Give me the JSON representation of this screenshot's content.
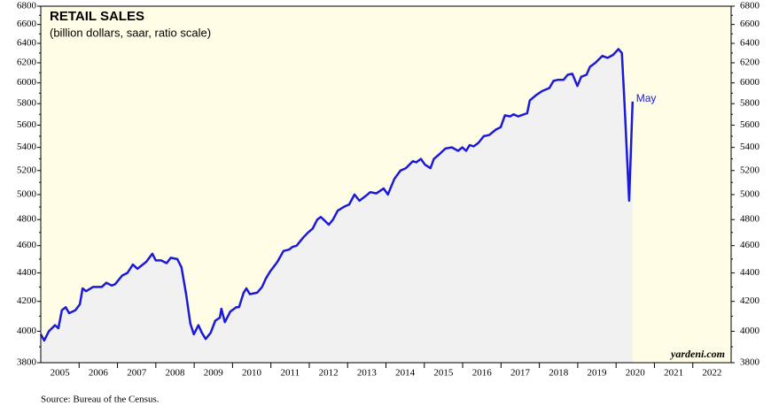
{
  "chart_data": {
    "type": "line",
    "title": "RETAIL SALES",
    "subtitle": "(billion dollars, saar, ratio scale)",
    "annotation": "May",
    "watermark": "yardeni.com",
    "source": "Source: Bureau of the Census.",
    "log_scale": true,
    "color": "#1a1ad8",
    "x": [
      2005.0,
      2005.09,
      2005.21,
      2005.37,
      2005.46,
      2005.55,
      2005.65,
      2005.74,
      2005.9,
      2006.02,
      2006.09,
      2006.18,
      2006.36,
      2006.59,
      2006.71,
      2006.85,
      2006.94,
      2007.12,
      2007.26,
      2007.4,
      2007.52,
      2007.75,
      2007.91,
      2008.0,
      2008.14,
      2008.28,
      2008.39,
      2008.56,
      2008.67,
      2008.79,
      2008.9,
      2008.99,
      2009.11,
      2009.2,
      2009.3,
      2009.43,
      2009.55,
      2009.67,
      2009.71,
      2009.8,
      2009.94,
      2010.1,
      2010.17,
      2010.29,
      2010.36,
      2010.45,
      2010.64,
      2010.77,
      2010.87,
      2010.98,
      2011.17,
      2011.33,
      2011.47,
      2011.56,
      2011.67,
      2011.84,
      2011.97,
      2012.09,
      2012.21,
      2012.3,
      2012.41,
      2012.51,
      2012.62,
      2012.74,
      2012.9,
      2013.04,
      2013.18,
      2013.31,
      2013.48,
      2013.59,
      2013.75,
      2013.94,
      2014.05,
      2014.22,
      2014.38,
      2014.52,
      2014.7,
      2014.79,
      2014.91,
      2015.02,
      2015.16,
      2015.25,
      2015.39,
      2015.55,
      2015.72,
      2015.88,
      2015.99,
      2016.09,
      2016.18,
      2016.29,
      2016.41,
      2016.55,
      2016.69,
      2016.87,
      2016.99,
      2017.1,
      2017.24,
      2017.33,
      2017.45,
      2017.68,
      2017.75,
      2017.91,
      2018.07,
      2018.26,
      2018.37,
      2018.49,
      2018.63,
      2018.74,
      2018.86,
      2018.99,
      2019.09,
      2019.23,
      2019.32,
      2019.46,
      2019.64,
      2019.78,
      2019.92,
      2020.06,
      2020.15,
      2020.22,
      2020.34,
      2020.43
    ],
    "values": [
      3980,
      3940,
      4000,
      4040,
      4020,
      4140,
      4160,
      4120,
      4140,
      4180,
      4290,
      4270,
      4300,
      4300,
      4330,
      4310,
      4320,
      4380,
      4400,
      4460,
      4430,
      4480,
      4540,
      4490,
      4490,
      4470,
      4510,
      4500,
      4440,
      4250,
      4050,
      3980,
      4040,
      3990,
      3950,
      3990,
      4070,
      4090,
      4150,
      4060,
      4130,
      4160,
      4160,
      4260,
      4290,
      4250,
      4260,
      4300,
      4360,
      4410,
      4480,
      4560,
      4570,
      4590,
      4600,
      4660,
      4700,
      4730,
      4800,
      4820,
      4790,
      4760,
      4800,
      4870,
      4900,
      4920,
      5000,
      4950,
      4990,
      5020,
      5010,
      5050,
      5000,
      5130,
      5200,
      5220,
      5280,
      5270,
      5300,
      5250,
      5220,
      5300,
      5340,
      5390,
      5400,
      5370,
      5400,
      5370,
      5420,
      5410,
      5440,
      5500,
      5510,
      5560,
      5580,
      5690,
      5680,
      5700,
      5680,
      5710,
      5830,
      5880,
      5920,
      5950,
      6020,
      6030,
      6030,
      6080,
      6090,
      5970,
      6060,
      6080,
      6160,
      6200,
      6270,
      6250,
      6280,
      6340,
      6300,
      5800,
      4950,
      5820
    ],
    "xlim": [
      2005,
      2023
    ],
    "ylim": [
      3800,
      6800
    ],
    "yticks": [
      3800,
      4000,
      4200,
      4400,
      4600,
      4800,
      5000,
      5200,
      5400,
      5600,
      5800,
      6000,
      6200,
      6400,
      6600,
      6800
    ],
    "xticks": [
      {
        "value": 2005.5,
        "label": "2005"
      },
      {
        "value": 2006.5,
        "label": "2006"
      },
      {
        "value": 2007.5,
        "label": "2007"
      },
      {
        "value": 2008.5,
        "label": "2008"
      },
      {
        "value": 2009.5,
        "label": "2009"
      },
      {
        "value": 2010.5,
        "label": "2010"
      },
      {
        "value": 2011.5,
        "label": "2011"
      },
      {
        "value": 2012.5,
        "label": "2012"
      },
      {
        "value": 2013.5,
        "label": "2013"
      },
      {
        "value": 2014.5,
        "label": "2014"
      },
      {
        "value": 2015.5,
        "label": "2015"
      },
      {
        "value": 2016.5,
        "label": "2016"
      },
      {
        "value": 2017.5,
        "label": "2017"
      },
      {
        "value": 2018.5,
        "label": "2018"
      },
      {
        "value": 2019.5,
        "label": "2019"
      },
      {
        "value": 2020.5,
        "label": "2020"
      },
      {
        "value": 2021.5,
        "label": "2021"
      },
      {
        "value": 2022.5,
        "label": "2022"
      }
    ]
  }
}
